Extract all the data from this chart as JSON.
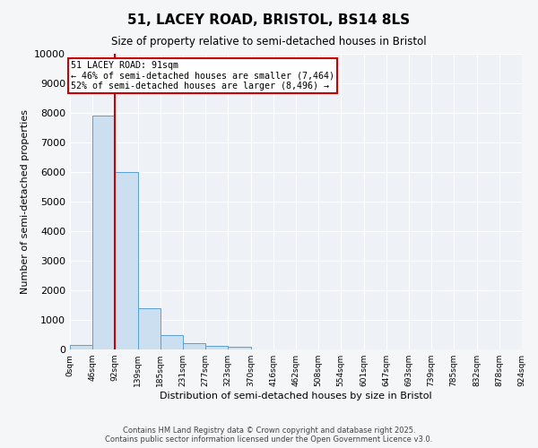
{
  "title": "51, LACEY ROAD, BRISTOL, BS14 8LS",
  "subtitle": "Size of property relative to semi-detached houses in Bristol",
  "xlabel": "Distribution of semi-detached houses by size in Bristol",
  "ylabel": "Number of semi-detached properties",
  "bin_edges": [
    0,
    46,
    92,
    139,
    185,
    231,
    277,
    323,
    370,
    416,
    462,
    508,
    554,
    601,
    647,
    693,
    739,
    785,
    832,
    878,
    924
  ],
  "bin_heights": [
    150,
    7900,
    6000,
    1400,
    500,
    200,
    120,
    80,
    0,
    0,
    0,
    0,
    0,
    0,
    0,
    0,
    0,
    0,
    0,
    0
  ],
  "bar_color": "#ccdff0",
  "bar_edge_color": "#5a9fd4",
  "red_line_x": 91,
  "annotation_title": "51 LACEY ROAD: 91sqm",
  "annotation_line1": "← 46% of semi-detached houses are smaller (7,464)",
  "annotation_line2": "52% of semi-detached houses are larger (8,496) →",
  "annotation_box_color": "#ffffff",
  "annotation_border_color": "#cc0000",
  "red_line_color": "#cc0000",
  "ylim": [
    0,
    10000
  ],
  "footer1": "Contains HM Land Registry data © Crown copyright and database right 2025.",
  "footer2": "Contains public sector information licensed under the Open Government Licence v3.0.",
  "bg_color": "#eef2f7",
  "fig_color": "#f5f6f7",
  "tick_labels": [
    "0sqm",
    "46sqm",
    "92sqm",
    "139sqm",
    "185sqm",
    "231sqm",
    "277sqm",
    "323sqm",
    "370sqm",
    "416sqm",
    "462sqm",
    "508sqm",
    "554sqm",
    "601sqm",
    "647sqm",
    "693sqm",
    "739sqm",
    "785sqm",
    "832sqm",
    "878sqm",
    "924sqm"
  ]
}
